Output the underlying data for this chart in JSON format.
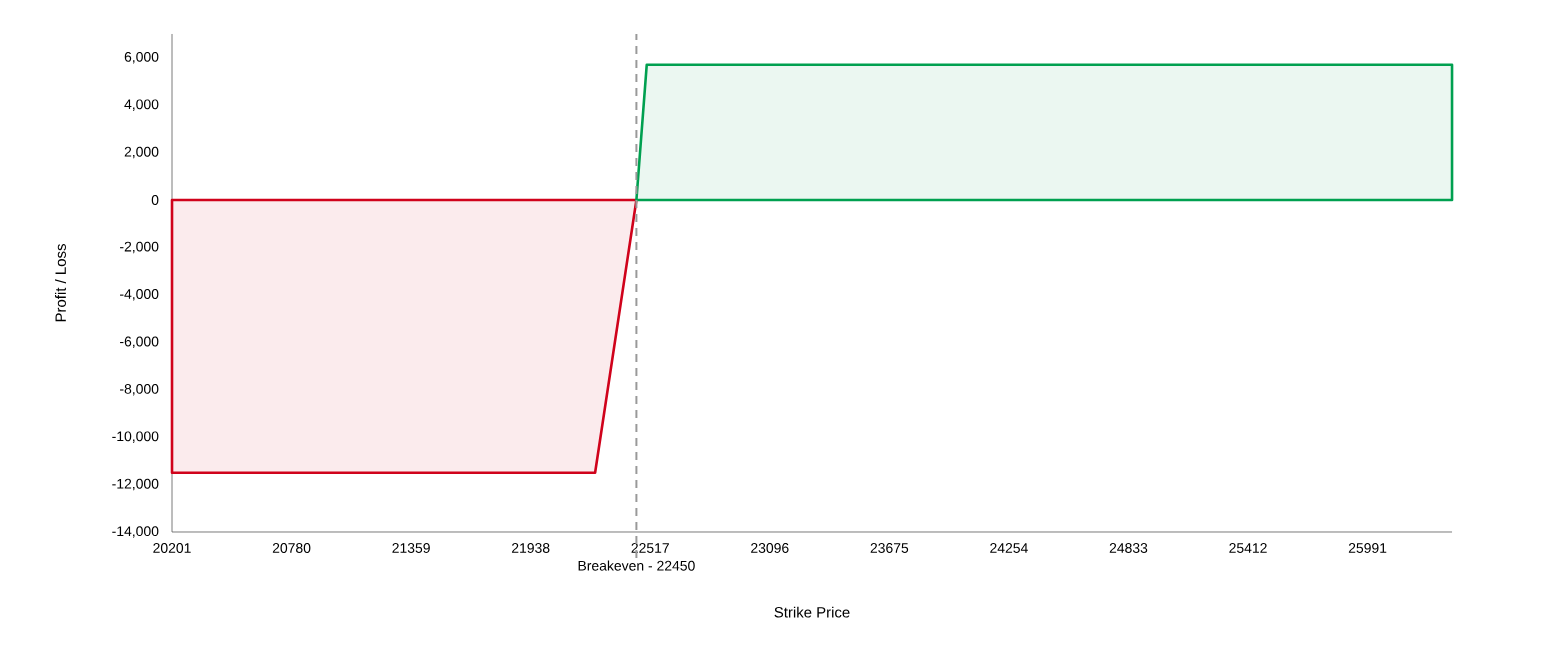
{
  "chart_data": {
    "type": "area",
    "xlabel": "Strike Price",
    "ylabel": "Profit / Loss",
    "xlim": [
      20201,
      26400
    ],
    "ylim": [
      -14000,
      7000
    ],
    "xticks": [
      20201,
      20780,
      21359,
      21938,
      22517,
      23096,
      23675,
      24254,
      24833,
      25412,
      25991
    ],
    "yticks": [
      {
        "value": -14000,
        "label": "-14,000"
      },
      {
        "value": -12000,
        "label": "-12,000"
      },
      {
        "value": -10000,
        "label": "-10,000"
      },
      {
        "value": -8000,
        "label": "-8,000"
      },
      {
        "value": -6000,
        "label": "-6,000"
      },
      {
        "value": -4000,
        "label": "-4,000"
      },
      {
        "value": -2000,
        "label": "-2,000"
      },
      {
        "value": 0,
        "label": "0"
      },
      {
        "value": 2000,
        "label": "2,000"
      },
      {
        "value": 4000,
        "label": "4,000"
      },
      {
        "value": 6000,
        "label": "6,000"
      }
    ],
    "series": [
      {
        "color": "#d0021b",
        "x": [
          20201,
          22250,
          22450
        ],
        "values": [
          -11500,
          -11500,
          0
        ]
      },
      {
        "color": "#00a050",
        "x": [
          22450,
          22500,
          26400
        ],
        "values": [
          0,
          5700,
          5700
        ]
      }
    ],
    "ref_lines": [
      {
        "axis": "x",
        "value": 22450,
        "label": "Breakeven - 22450",
        "color": "#999999",
        "line_style": "dashed"
      }
    ]
  }
}
